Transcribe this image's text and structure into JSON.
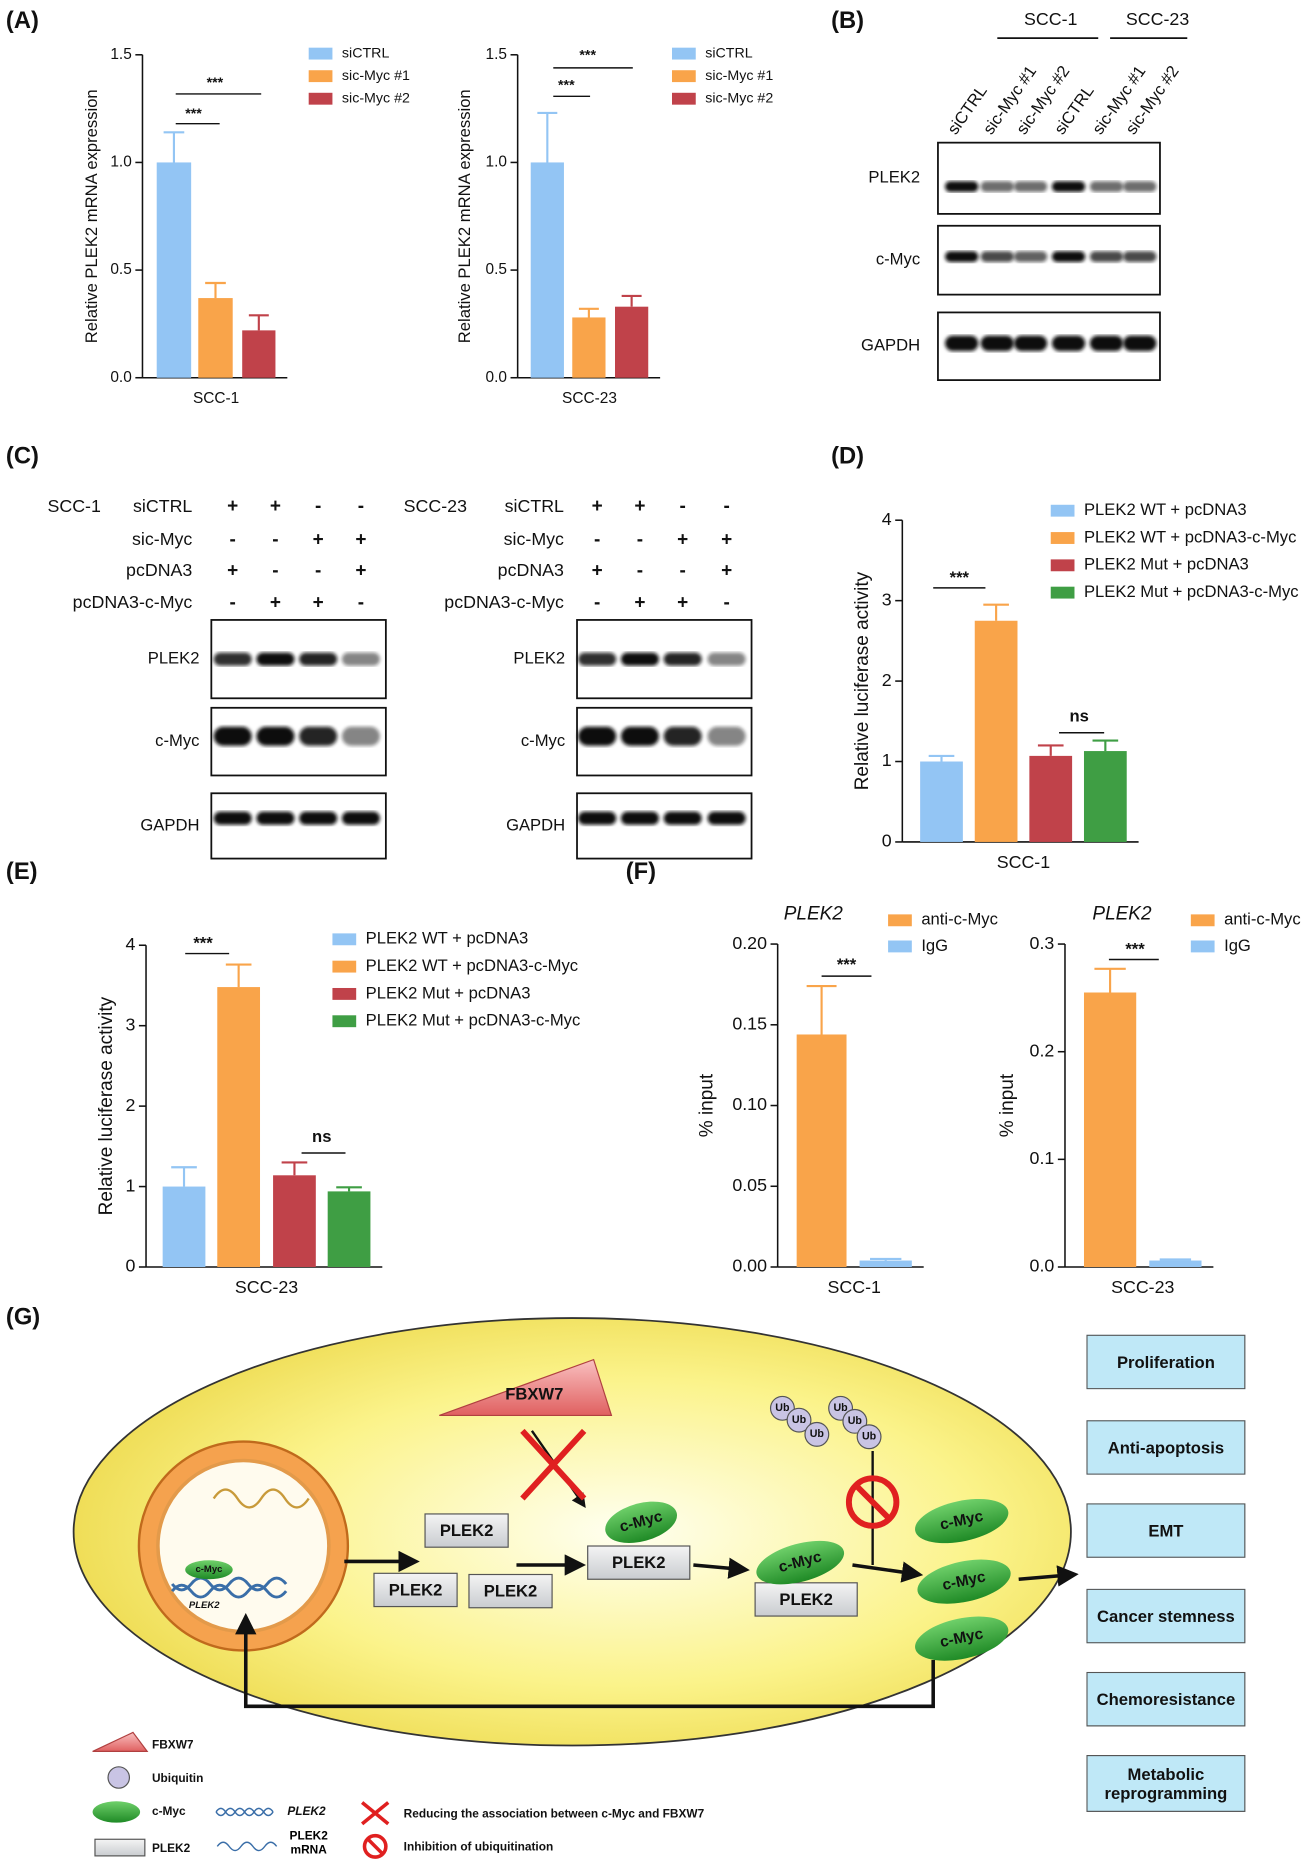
{
  "panel_labels": [
    "(A)",
    "(B)",
    "(C)",
    "(D)",
    "(E)",
    "(F)",
    "(G)"
  ],
  "chart_data": [
    {
      "type": "bar",
      "categories": [
        "SCC-1"
      ],
      "ylabel": "Relative PLEK2 mRNA expression",
      "ylim": [
        0,
        1.5
      ],
      "yticks": [
        {
          "value": 0,
          "label": "0.0"
        },
        0.5,
        {
          "value": 1,
          "label": "1.0"
        },
        1.5
      ],
      "series": [
        {
          "name": "siCTRL",
          "color": "#93c5f4",
          "values": [
            1.0
          ],
          "errors": [
            0.14
          ]
        },
        {
          "name": "sic-Myc #1",
          "color": "#f9a44a",
          "values": [
            0.37
          ],
          "errors": [
            0.07
          ]
        },
        {
          "name": "sic-Myc #2",
          "color": "#c0424a",
          "values": [
            0.22
          ],
          "errors": [
            0.07
          ]
        }
      ],
      "annotations": [
        "***",
        "***"
      ]
    },
    {
      "type": "bar",
      "categories": [
        "SCC-23"
      ],
      "ylabel": "Relative PLEK2 mRNA expression",
      "ylim": [
        0,
        1.5
      ],
      "yticks": [
        {
          "value": 0,
          "label": "0.0"
        },
        0.5,
        {
          "value": 1,
          "label": "1.0"
        },
        1.5
      ],
      "series": [
        {
          "name": "siCTRL",
          "color": "#93c5f4",
          "values": [
            1.0
          ],
          "errors": [
            0.23
          ]
        },
        {
          "name": "sic-Myc #1",
          "color": "#f9a44a",
          "values": [
            0.28
          ],
          "errors": [
            0.04
          ]
        },
        {
          "name": "sic-Myc #2",
          "color": "#c0424a",
          "values": [
            0.33
          ],
          "errors": [
            0.05
          ]
        }
      ],
      "annotations": [
        "***",
        "***"
      ]
    },
    {
      "type": "bar",
      "categories": [
        "SCC-1"
      ],
      "ylabel": "Relative luciferase activity",
      "ylim": [
        0,
        4
      ],
      "yticks": [
        0,
        1,
        2,
        3,
        4
      ],
      "series": [
        {
          "name": "PLEK2 WT + pcDNA3",
          "color": "#93c5f4",
          "values": [
            1.0
          ],
          "errors": [
            0.07
          ]
        },
        {
          "name": "PLEK2 WT + pcDNA3-c-Myc",
          "color": "#f9a44a",
          "values": [
            2.75
          ],
          "errors": [
            0.2
          ]
        },
        {
          "name": "PLEK2 Mut + pcDNA3",
          "color": "#c0424a",
          "values": [
            1.07
          ],
          "errors": [
            0.13
          ]
        },
        {
          "name": "PLEK2 Mut + pcDNA3-c-Myc",
          "color": "#3f9e44",
          "values": [
            1.13
          ],
          "errors": [
            0.13
          ]
        }
      ],
      "annotations": [
        "***",
        "ns"
      ]
    },
    {
      "type": "bar",
      "categories": [
        "SCC-23"
      ],
      "ylabel": "Relative luciferase activity",
      "ylim": [
        0,
        4
      ],
      "yticks": [
        0,
        1,
        2,
        3,
        4
      ],
      "series": [
        {
          "name": "PLEK2 WT + pcDNA3",
          "color": "#93c5f4",
          "values": [
            1.0
          ],
          "errors": [
            0.24
          ]
        },
        {
          "name": "PLEK2 WT + pcDNA3-c-Myc",
          "color": "#f9a44a",
          "values": [
            3.48
          ],
          "errors": [
            0.28
          ]
        },
        {
          "name": "PLEK2 Mut + pcDNA3",
          "color": "#c0424a",
          "values": [
            1.14
          ],
          "errors": [
            0.16
          ]
        },
        {
          "name": "PLEK2 Mut + pcDNA3-c-Myc",
          "color": "#3f9e44",
          "values": [
            0.94
          ],
          "errors": [
            0.05
          ]
        }
      ],
      "annotations": [
        "***",
        "ns"
      ]
    },
    {
      "type": "bar",
      "title": "PLEK2",
      "categories": [
        "SCC-1"
      ],
      "ylabel": "% input",
      "ylim": [
        0,
        0.2
      ],
      "yticks": [
        {
          "value": 0,
          "label": "0.00"
        },
        0.05,
        {
          "value": 0.1,
          "label": "0.10"
        },
        0.15,
        {
          "value": 0.2,
          "label": "0.20"
        }
      ],
      "series": [
        {
          "name": "anti-c-Myc",
          "color": "#f9a44a",
          "values": [
            0.144
          ],
          "errors": [
            0.03
          ]
        },
        {
          "name": "IgG",
          "color": "#93c5f4",
          "values": [
            0.004
          ],
          "errors": [
            0.001
          ]
        }
      ],
      "annotations": [
        "***"
      ]
    },
    {
      "type": "bar",
      "title": "PLEK2",
      "categories": [
        "SCC-23"
      ],
      "ylabel": "% input",
      "ylim": [
        0,
        0.3
      ],
      "yticks": [
        {
          "value": 0,
          "label": "0.0"
        },
        0.1,
        0.2,
        0.3
      ],
      "series": [
        {
          "name": "anti-c-Myc",
          "color": "#f9a44a",
          "values": [
            0.255
          ],
          "errors": [
            0.022
          ]
        },
        {
          "name": "IgG",
          "color": "#93c5f4",
          "values": [
            0.006
          ],
          "errors": [
            0.001
          ]
        }
      ],
      "annotations": [
        "***"
      ]
    }
  ],
  "blot_b": {
    "groups": [
      "SCC-1",
      "SCC-23"
    ],
    "lanes": [
      "siCTRL",
      "sic-Myc #1",
      "sic-Myc #2",
      "siCTRL",
      "sic-Myc #1",
      "sic-Myc #2"
    ],
    "rows": [
      "PLEK2",
      "c-Myc",
      "GAPDH"
    ]
  },
  "blot_c": [
    {
      "cell_line": "SCC-1",
      "conditions": [
        {
          "name": "siCTRL",
          "signs": [
            "+",
            "+",
            "-",
            "-"
          ]
        },
        {
          "name": "sic-Myc",
          "signs": [
            "-",
            "-",
            "+",
            "+"
          ]
        },
        {
          "name": "pcDNA3",
          "signs": [
            "+",
            "-",
            "-",
            "+"
          ]
        },
        {
          "name": "pcDNA3-c-Myc",
          "signs": [
            "-",
            "+",
            "+",
            "-"
          ]
        }
      ],
      "rows": [
        "PLEK2",
        "c-Myc",
        "GAPDH"
      ]
    },
    {
      "cell_line": "SCC-23",
      "conditions": [
        {
          "name": "siCTRL",
          "signs": [
            "+",
            "+",
            "-",
            "-"
          ]
        },
        {
          "name": "sic-Myc",
          "signs": [
            "-",
            "-",
            "+",
            "+"
          ]
        },
        {
          "name": "pcDNA3",
          "signs": [
            "+",
            "-",
            "-",
            "+"
          ]
        },
        {
          "name": "pcDNA3-c-Myc",
          "signs": [
            "-",
            "+",
            "+",
            "-"
          ]
        }
      ],
      "rows": [
        "PLEK2",
        "c-Myc",
        "GAPDH"
      ]
    }
  ],
  "diagram": {
    "fbxw7": "FBXW7",
    "ubiquitin": [
      "Ub",
      "Ub",
      "Ub",
      "Ub",
      "Ub",
      "Ub"
    ],
    "plek2": [
      "PLEK2",
      "PLEK2",
      "PLEK2",
      "PLEK2",
      "PLEK2"
    ],
    "c_myc": [
      "c-Myc",
      "c-Myc",
      "c-Myc",
      "c-Myc",
      "c-Myc"
    ],
    "nucleus_c_myc": "c-Myc",
    "nucleus_gene": "PLEK2",
    "outcomes": [
      "Proliferation",
      "Anti-apoptosis",
      "EMT",
      "Cancer stemness",
      "Chemoresistance",
      "Metabolic reprogramming"
    ],
    "legend": [
      "FBXW7",
      "Ubiquitin",
      "c-Myc",
      "PLEK2",
      "PLEK2",
      "PLEK2 mRNA",
      "Reducing the association between c-Myc and FBXW7",
      "Inhibition of ubiquitination"
    ]
  }
}
